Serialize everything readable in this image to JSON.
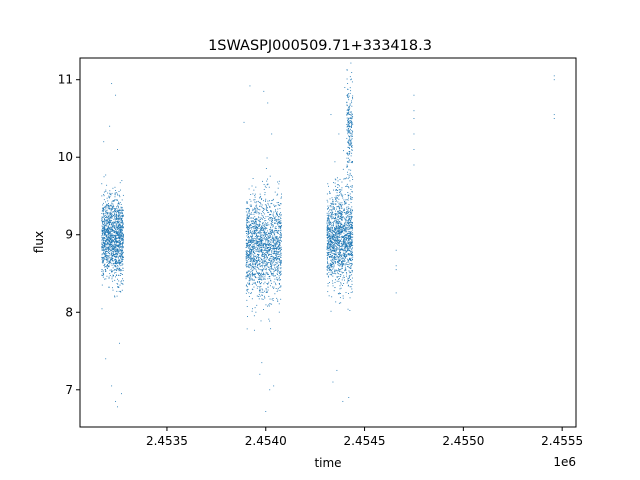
{
  "chart_data": {
    "type": "scatter",
    "title": "1SWASPJ000509.71+333418.3",
    "xlabel": "time",
    "ylabel": "flux",
    "x_offset_label": "1e6",
    "xlim": [
      2.45306,
      2.45557
    ],
    "ylim": [
      6.52,
      11.28
    ],
    "x_ticks": [
      2.4535,
      2.454,
      2.4545,
      2.455,
      2.4555
    ],
    "x_tick_labels": [
      "2.4535",
      "2.4540",
      "2.4545",
      "2.4550",
      "2.4555"
    ],
    "y_ticks": [
      7,
      8,
      9,
      10,
      11
    ],
    "y_tick_labels": [
      "7",
      "8",
      "9",
      "10",
      "11"
    ],
    "grid": false,
    "marker_color": "#1f77b4",
    "series": [
      {
        "clusters": [
          {
            "x_range": [
              2.45317,
              2.45328
            ],
            "y_mean": 8.95,
            "y_sd": 0.26,
            "count": 1400
          },
          {
            "x_range": [
              2.4539,
              2.45408
            ],
            "y_mean": 8.85,
            "y_sd": 0.32,
            "count": 1700
          },
          {
            "x_range": [
              2.45431,
              2.45444
            ],
            "y_mean": 8.95,
            "y_sd": 0.3,
            "count": 1500
          },
          {
            "x_range": [
              2.45441,
              2.45444
            ],
            "y_mean": 10.35,
            "y_sd": 0.35,
            "count": 220
          }
        ],
        "points": [
          [
            2.45322,
            10.95
          ],
          [
            2.45324,
            10.8
          ],
          [
            2.45321,
            10.4
          ],
          [
            2.45325,
            10.1
          ],
          [
            2.45318,
            10.2
          ],
          [
            2.45326,
            7.6
          ],
          [
            2.45322,
            7.05
          ],
          [
            2.45324,
            6.85
          ],
          [
            2.45325,
            6.78
          ],
          [
            2.45327,
            6.95
          ],
          [
            2.45319,
            7.4
          ],
          [
            2.45392,
            10.92
          ],
          [
            2.45389,
            10.45
          ],
          [
            2.45399,
            10.85
          ],
          [
            2.45401,
            10.7
          ],
          [
            2.45403,
            10.3
          ],
          [
            2.45398,
            7.35
          ],
          [
            2.454,
            6.72
          ],
          [
            2.45402,
            7.0
          ],
          [
            2.45397,
            7.2
          ],
          [
            2.45404,
            7.05
          ],
          [
            2.45433,
            10.55
          ],
          [
            2.45437,
            10.3
          ],
          [
            2.4544,
            10.9
          ],
          [
            2.45443,
            11.0
          ],
          [
            2.45436,
            7.25
          ],
          [
            2.45442,
            6.9
          ],
          [
            2.45439,
            6.85
          ],
          [
            2.45434,
            7.1
          ],
          [
            2.45466,
            8.8
          ],
          [
            2.45466,
            8.6
          ],
          [
            2.45466,
            8.55
          ],
          [
            2.45466,
            8.25
          ],
          [
            2.45475,
            10.8
          ],
          [
            2.45475,
            10.6
          ],
          [
            2.45475,
            10.5
          ],
          [
            2.45475,
            10.3
          ],
          [
            2.45475,
            10.1
          ],
          [
            2.45475,
            9.9
          ],
          [
            2.45546,
            11.05
          ],
          [
            2.45546,
            11.0
          ],
          [
            2.45546,
            10.55
          ],
          [
            2.45546,
            10.5
          ]
        ]
      }
    ]
  }
}
